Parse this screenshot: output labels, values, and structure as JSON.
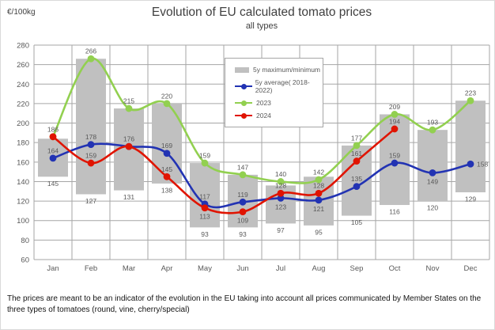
{
  "header": {
    "unit": "€/100kg",
    "title": "Evolution of EU calculated tomato prices",
    "subtitle": "all types"
  },
  "legend": {
    "items": [
      {
        "label": "5y maximum/minimum",
        "type": "bar",
        "color": "#C0C0C0"
      },
      {
        "label": "5y average( 2018-2022)",
        "type": "line",
        "color": "#2233B3"
      },
      {
        "label": "2023",
        "type": "line",
        "color": "#92D050"
      },
      {
        "label": "2024",
        "type": "line",
        "color": "#E01400"
      }
    ]
  },
  "footnote": {
    "text": "The prices are meant to be an indicator of the evolution in the EU taking into account all prices communicated by Member States on the three types of tomatoes (round, vine, cherry/special)"
  },
  "chart_data": {
    "type": "line",
    "title": "Evolution of EU calculated tomato prices",
    "subtitle": "all types",
    "ylabel": "€/100kg",
    "xlabel": "",
    "ylim": [
      60,
      280
    ],
    "yticks": [
      280,
      260,
      240,
      220,
      200,
      180,
      160,
      140,
      120,
      100,
      80,
      60
    ],
    "grid": true,
    "legend_position": "upper-center-left",
    "categories": [
      "Jan",
      "Feb",
      "Mar",
      "Apr",
      "May",
      "Jun",
      "Jul",
      "Aug",
      "Sep",
      "Oct",
      "Nov",
      "Dec"
    ],
    "range_series": {
      "name": "5y maximum/minimum",
      "color": "#C0C0C0",
      "min": [
        145,
        127,
        131,
        138,
        93,
        93,
        97,
        95,
        105,
        116,
        120,
        129
      ],
      "max": [
        184,
        266,
        215,
        220,
        159,
        147,
        136,
        145,
        177,
        209,
        193,
        223
      ]
    },
    "series": [
      {
        "name": "5y average( 2018-2022)",
        "color": "#2233B3",
        "values": [
          164,
          178,
          176,
          169,
          117,
          119,
          123,
          121,
          135,
          159,
          149,
          158
        ]
      },
      {
        "name": "2023",
        "color": "#92D050",
        "values": [
          186,
          266,
          215,
          220,
          159,
          147,
          140,
          142,
          177,
          209,
          193,
          223
        ]
      },
      {
        "name": "2024",
        "color": "#E01400",
        "values": [
          186,
          159,
          176,
          145,
          113,
          109,
          128,
          128,
          161,
          194,
          null,
          null
        ]
      }
    ]
  }
}
